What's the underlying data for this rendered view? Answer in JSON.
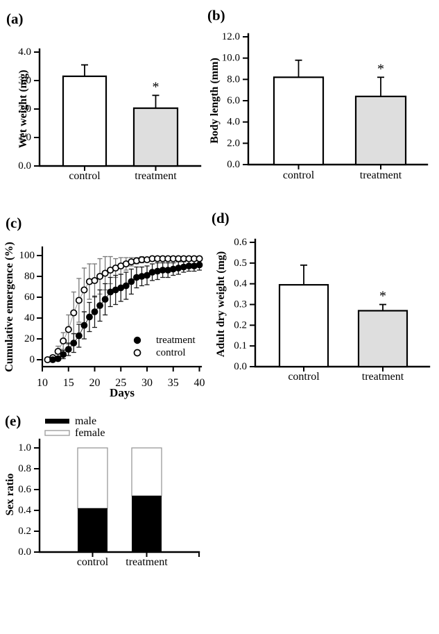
{
  "figure": {
    "background": "#ffffff"
  },
  "chart_data": [
    {
      "panel": "(a)",
      "type": "bar",
      "ylabel": "Wet weight (mg)",
      "categories": [
        "control",
        "treatment"
      ],
      "values": [
        3.15,
        2.03
      ],
      "errors": [
        0.4,
        0.45
      ],
      "significance": [
        "",
        "*"
      ],
      "bar_fills": [
        "#ffffff",
        "#dedede"
      ],
      "bar_edge": "#000000",
      "ylim": [
        0,
        4.0
      ],
      "yticks": [
        0,
        1,
        2,
        3,
        4
      ],
      "ytick_labels": [
        "0.0",
        "1.0",
        "2.0",
        "3.0",
        "4.0"
      ]
    },
    {
      "panel": "(b)",
      "type": "bar",
      "ylabel": "Body length (mm)",
      "categories": [
        "control",
        "treatment"
      ],
      "values": [
        8.2,
        6.4
      ],
      "errors": [
        1.6,
        1.8
      ],
      "significance": [
        "",
        "*"
      ],
      "bar_fills": [
        "#ffffff",
        "#dedede"
      ],
      "bar_edge": "#000000",
      "ylim": [
        0,
        12.0
      ],
      "yticks": [
        0,
        2,
        4,
        6,
        8,
        10,
        12
      ],
      "ytick_labels": [
        "0.0",
        "2.0",
        "4.0",
        "6.0",
        "8.0",
        "10.0",
        "12.0"
      ]
    },
    {
      "panel": "(c)",
      "type": "line",
      "xlabel": "Days",
      "ylabel": "Cumulative emergence (%)",
      "xlim": [
        10,
        40
      ],
      "ylim": [
        0,
        100
      ],
      "xticks": [
        10,
        15,
        20,
        25,
        30,
        35,
        40
      ],
      "xtick_labels": [
        "10",
        "15",
        "20",
        "25",
        "30",
        "35",
        "40"
      ],
      "yticks": [
        0,
        20,
        40,
        60,
        80,
        100
      ],
      "ytick_labels": [
        "0",
        "20",
        "40",
        "60",
        "80",
        "100"
      ],
      "legend_position": "inside-bottom-right",
      "series": [
        {
          "name": "treatment",
          "marker": "filled-circle",
          "err_color": "#1a1a1a",
          "line_color": "#333333",
          "x": [
            12,
            13,
            14,
            15,
            16,
            17,
            18,
            19,
            20,
            21,
            22,
            23,
            24,
            25,
            26,
            27,
            28,
            29,
            30,
            31,
            32,
            33,
            34,
            35,
            36,
            37,
            38,
            39,
            40
          ],
          "y": [
            0,
            1,
            5,
            10,
            16,
            23,
            33,
            41,
            46,
            52,
            58,
            65,
            67,
            69,
            71,
            75,
            79,
            80,
            81,
            84,
            85,
            86,
            86,
            87,
            88,
            89,
            90,
            90,
            91
          ],
          "err": [
            0,
            1,
            4,
            6,
            9,
            11,
            13,
            14,
            15,
            15,
            15,
            14,
            14,
            13,
            13,
            12,
            10,
            9,
            9,
            8,
            8,
            7,
            7,
            6,
            6,
            5,
            5,
            5,
            5
          ]
        },
        {
          "name": "control",
          "marker": "open-circle",
          "err_color": "#777777",
          "line_color": "#999999",
          "x": [
            11,
            12,
            13,
            14,
            15,
            16,
            17,
            18,
            19,
            20,
            21,
            22,
            23,
            24,
            25,
            26,
            27,
            28,
            29,
            30,
            31,
            32,
            33,
            34,
            35,
            36,
            37,
            38,
            39,
            40
          ],
          "y": [
            0,
            2,
            8,
            18,
            29,
            45,
            57,
            67,
            75,
            76,
            80,
            83,
            86,
            88,
            90,
            92,
            94,
            95,
            96,
            96,
            97,
            97,
            97,
            97,
            97,
            97,
            97,
            97,
            97,
            97
          ],
          "err": [
            1,
            2,
            5,
            8,
            14,
            20,
            21,
            21,
            17,
            16,
            17,
            16,
            13,
            9,
            8,
            6,
            4,
            3,
            3,
            2,
            2,
            2,
            2,
            2,
            2,
            2,
            2,
            2,
            2,
            2
          ]
        }
      ]
    },
    {
      "panel": "(d)",
      "type": "bar",
      "ylabel": "Adult dry weight (mg)",
      "categories": [
        "control",
        "treatment"
      ],
      "values": [
        0.395,
        0.27
      ],
      "errors": [
        0.095,
        0.03
      ],
      "significance": [
        "",
        "*"
      ],
      "bar_fills": [
        "#ffffff",
        "#dedede"
      ],
      "bar_edge": "#000000",
      "ylim": [
        0,
        0.6
      ],
      "yticks": [
        0,
        0.1,
        0.2,
        0.3,
        0.4,
        0.5,
        0.6
      ],
      "ytick_labels": [
        "0.0",
        "0.1",
        "0.2",
        "0.3",
        "0.4",
        "0.5",
        "0.6"
      ]
    },
    {
      "panel": "(e)",
      "type": "stacked-bar",
      "ylabel": "Sex ratio",
      "categories": [
        "control",
        "treatment"
      ],
      "series": [
        {
          "name": "male",
          "values": [
            0.42,
            0.54
          ],
          "fill": "#000000"
        },
        {
          "name": "female",
          "values": [
            0.58,
            0.46
          ],
          "fill": "#ffffff",
          "edge": "#999999"
        }
      ],
      "ylim": [
        0,
        1.0
      ],
      "yticks": [
        0,
        0.2,
        0.4,
        0.6,
        0.8,
        1.0
      ],
      "ytick_labels": [
        "0.0",
        "0.2",
        "0.4",
        "0.6",
        "0.8",
        "1.0"
      ],
      "legend_position": "above-top-left"
    }
  ]
}
